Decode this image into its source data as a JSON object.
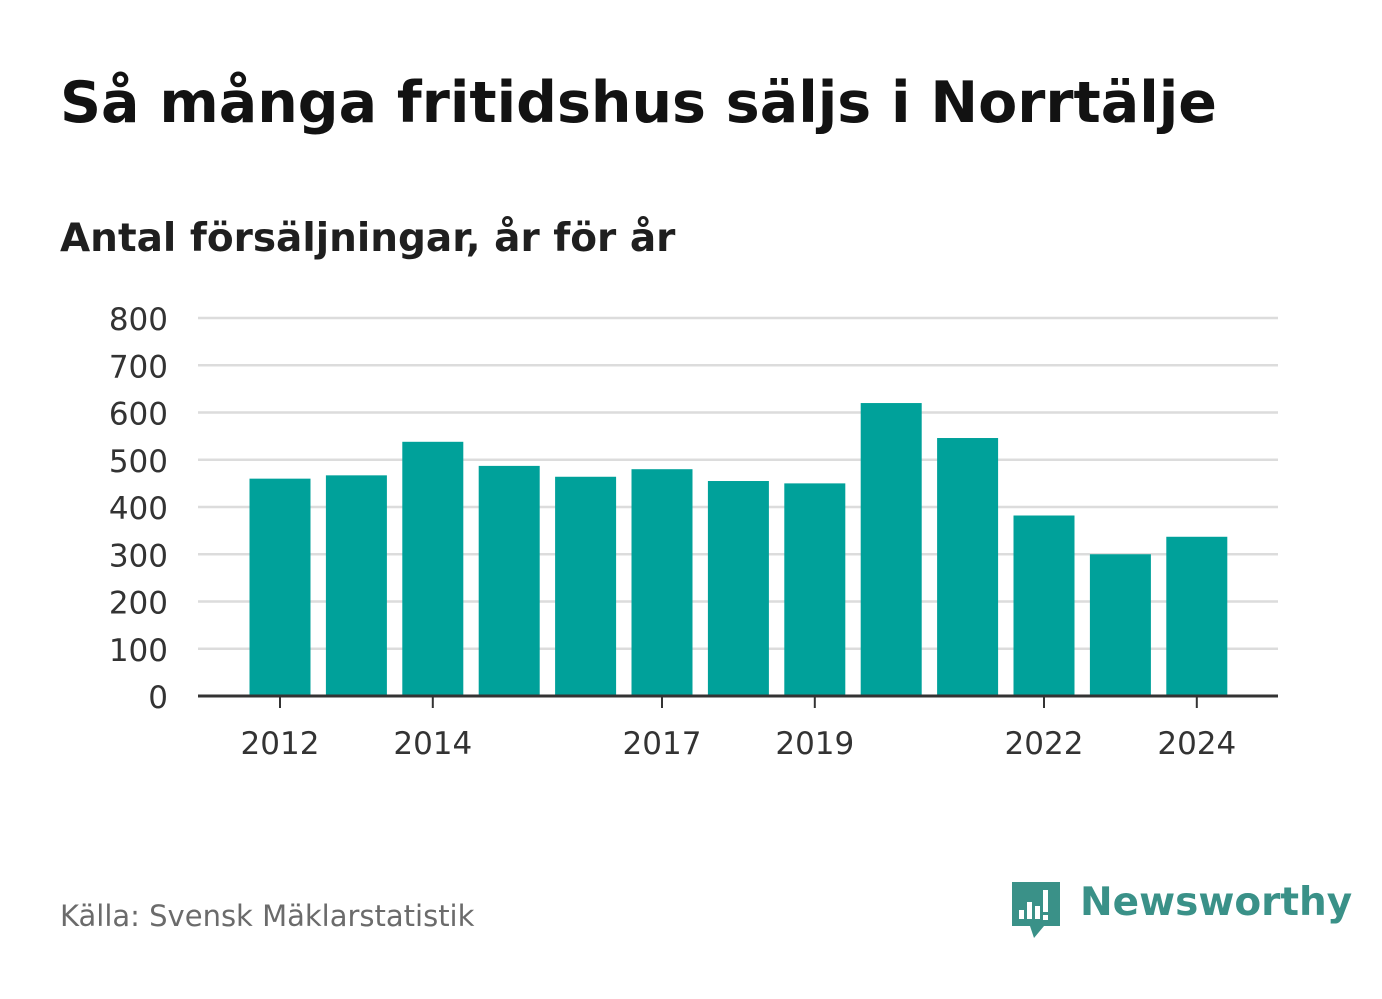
{
  "title": "Så många fritidshus säljs i Norrtälje",
  "subtitle": "Antal försäljningar, år för år",
  "source": "Källa: Svensk Mäklarstatistik",
  "brand": {
    "name": "Newsworthy",
    "icon": "newsworthy-logo-icon",
    "color": "#3a9188"
  },
  "colors": {
    "bar": "#00a19a",
    "grid": "#dcdcdc",
    "axis": "#333333",
    "tick_text": "#333333"
  },
  "chart_data": {
    "type": "bar",
    "categories": [
      "2012",
      "2013",
      "2014",
      "2015",
      "2016",
      "2017",
      "2018",
      "2019",
      "2020",
      "2021",
      "2022",
      "2023",
      "2024"
    ],
    "values": [
      460,
      467,
      538,
      487,
      464,
      480,
      455,
      450,
      620,
      546,
      382,
      300,
      337
    ],
    "x_tick_labels": [
      "2012",
      "2014",
      "2017",
      "2019",
      "2022",
      "2024"
    ],
    "y_ticks": [
      0,
      100,
      200,
      300,
      400,
      500,
      600,
      700,
      800
    ],
    "ylim": [
      0,
      800
    ],
    "title": "Så många fritidshus säljs i Norrtälje",
    "subtitle": "Antal försäljningar, år för år",
    "xlabel": "",
    "ylabel": "",
    "grid": true,
    "legend": "none"
  }
}
